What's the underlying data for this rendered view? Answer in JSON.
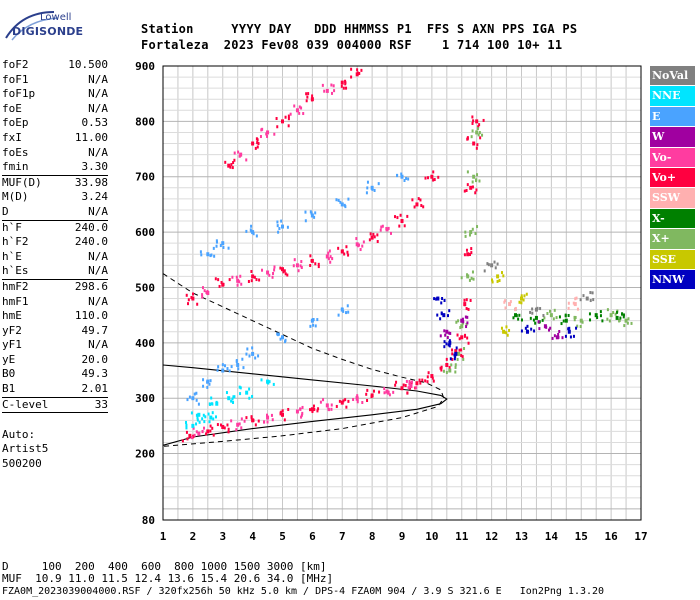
{
  "logo": {
    "line1": "Lowell",
    "line2": "DIGISONDE"
  },
  "header": {
    "line1": "Station     YYYY DAY   DDD HHMMSS P1  FFS S AXN PPS IGA PS",
    "line2": "Fortaleza  2023 Fev08 039 004000 RSF    1 714 100 10+ 11"
  },
  "params": {
    "group1": [
      {
        "k": "foF2",
        "v": "10.500"
      },
      {
        "k": "foF1",
        "v": "N/A"
      },
      {
        "k": "foF1p",
        "v": "N/A"
      },
      {
        "k": "foE",
        "v": "N/A"
      },
      {
        "k": "foEp",
        "v": "0.53"
      },
      {
        "k": "fxI",
        "v": "11.00"
      },
      {
        "k": "foEs",
        "v": "N/A"
      },
      {
        "k": "fmin",
        "v": "3.30"
      }
    ],
    "group2": [
      {
        "k": "MUF(D)",
        "v": "33.98"
      },
      {
        "k": "M(D)",
        "v": "3.24"
      },
      {
        "k": "D",
        "v": "N/A"
      }
    ],
    "group3": [
      {
        "k": "h`F",
        "v": "240.0"
      },
      {
        "k": "h`F2",
        "v": "240.0"
      },
      {
        "k": "h`E",
        "v": "N/A"
      },
      {
        "k": "h`Es",
        "v": "N/A"
      }
    ],
    "group4": [
      {
        "k": "hmF2",
        "v": "298.6"
      },
      {
        "k": "hmF1",
        "v": "N/A"
      },
      {
        "k": "hmE",
        "v": "110.0"
      },
      {
        "k": "yF2",
        "v": "49.7"
      },
      {
        "k": "yF1",
        "v": "N/A"
      },
      {
        "k": "yE",
        "v": "20.0"
      },
      {
        "k": "B0",
        "v": "49.3"
      },
      {
        "k": "B1",
        "v": "2.01"
      }
    ],
    "group5": [
      {
        "k": "C-level",
        "v": "33"
      }
    ],
    "auto": [
      "Auto:",
      "Artist5",
      "500200"
    ]
  },
  "legend": [
    {
      "label": "NoVal",
      "color": "#808080"
    },
    {
      "label": "NNE",
      "color": "#00e5ff"
    },
    {
      "label": "E",
      "color": "#4aa3ff"
    },
    {
      "label": "W",
      "color": "#a000a0"
    },
    {
      "label": "Vo-",
      "color": "#ff3ca0"
    },
    {
      "label": "Vo+",
      "color": "#ff0040"
    },
    {
      "label": "SSW",
      "color": "#ffb0b0"
    },
    {
      "label": "X-",
      "color": "#008000"
    },
    {
      "label": "X+",
      "color": "#80b860"
    },
    {
      "label": "SSE",
      "color": "#c8c800"
    },
    {
      "label": "NNW",
      "color": "#0000c0"
    }
  ],
  "footer": {
    "line1": "D     100  200  400  600  800 1000 1500 3000 [km]",
    "line2": "MUF  10.9 11.0 11.5 12.4 13.6 15.4 20.6 34.0 [MHz]",
    "line3": "FZA0M_2023039004000.RSF / 320fx256h 50 kHz 5.0 km / DPS-4 FZA0M 904 / 3.9 S 321.6 E   Ion2Png 1.3.20"
  },
  "chart_data": {
    "type": "scatter",
    "xlim": [
      1,
      17
    ],
    "ylim": [
      80,
      900
    ],
    "x_ticks": [
      1,
      2,
      3,
      4,
      5,
      6,
      7,
      8,
      9,
      10,
      11,
      12,
      13,
      14,
      15,
      16,
      17
    ],
    "y_ticks": [
      80,
      200,
      300,
      400,
      500,
      600,
      700,
      800,
      900
    ],
    "grid": true,
    "series": [
      {
        "name": "Vo+",
        "color": "#ff0040",
        "points": [
          [
            1.9,
            232
          ],
          [
            2.5,
            240
          ],
          [
            3.0,
            248
          ],
          [
            4.0,
            260
          ],
          [
            5.0,
            270
          ],
          [
            6.0,
            280
          ],
          [
            7.0,
            292
          ],
          [
            8.0,
            305
          ],
          [
            9.0,
            318
          ],
          [
            9.5,
            327
          ],
          [
            10.0,
            340
          ],
          [
            10.5,
            360
          ],
          [
            10.8,
            385
          ],
          [
            11.0,
            410
          ],
          [
            11.1,
            470
          ],
          [
            11.2,
            560
          ],
          [
            11.3,
            680
          ],
          [
            11.4,
            760
          ],
          [
            11.5,
            800
          ],
          [
            2.0,
            480
          ],
          [
            3.0,
            505
          ],
          [
            4.0,
            520
          ],
          [
            5.0,
            533
          ],
          [
            6.0,
            548
          ],
          [
            7.0,
            565
          ],
          [
            8.0,
            590
          ],
          [
            9.0,
            620
          ],
          [
            9.5,
            650
          ],
          [
            10.0,
            700
          ],
          [
            3.2,
            720
          ],
          [
            4.0,
            760
          ],
          [
            5.0,
            800
          ],
          [
            6.0,
            840
          ],
          [
            7.0,
            870
          ],
          [
            7.5,
            885
          ]
        ]
      },
      {
        "name": "Vo-",
        "color": "#ff3ca0",
        "points": [
          [
            2.2,
            236
          ],
          [
            3.5,
            252
          ],
          [
            4.5,
            265
          ],
          [
            5.5,
            276
          ],
          [
            6.5,
            287
          ],
          [
            7.5,
            299
          ],
          [
            8.5,
            312
          ],
          [
            9.3,
            322
          ],
          [
            2.5,
            490
          ],
          [
            3.5,
            512
          ],
          [
            4.5,
            527
          ],
          [
            5.5,
            540
          ],
          [
            6.5,
            556
          ],
          [
            7.5,
            578
          ],
          [
            8.5,
            605
          ],
          [
            3.6,
            740
          ],
          [
            4.5,
            780
          ],
          [
            5.5,
            820
          ],
          [
            6.5,
            855
          ]
        ]
      },
      {
        "name": "E",
        "color": "#4aa3ff",
        "points": [
          [
            2.0,
            300
          ],
          [
            2.5,
            330
          ],
          [
            3.0,
            350
          ],
          [
            3.5,
            360
          ],
          [
            4.0,
            380
          ],
          [
            5.0,
            410
          ],
          [
            6.0,
            440
          ],
          [
            7.0,
            460
          ],
          [
            2.5,
            560
          ],
          [
            3.0,
            580
          ],
          [
            4.0,
            600
          ],
          [
            5.0,
            610
          ],
          [
            6.0,
            630
          ],
          [
            7.0,
            650
          ],
          [
            8.0,
            680
          ],
          [
            9.0,
            700
          ]
        ]
      },
      {
        "name": "NNE",
        "color": "#00e5ff",
        "points": [
          [
            2.2,
            270
          ],
          [
            2.8,
            290
          ],
          [
            3.2,
            300
          ],
          [
            3.8,
            310
          ],
          [
            4.5,
            330
          ],
          [
            2.0,
            250
          ],
          [
            2.6,
            265
          ]
        ]
      },
      {
        "name": "X+",
        "color": "#80b860",
        "points": [
          [
            10.6,
            350
          ],
          [
            10.9,
            380
          ],
          [
            11.0,
            430
          ],
          [
            11.2,
            520
          ],
          [
            11.3,
            600
          ],
          [
            11.4,
            700
          ],
          [
            11.5,
            780
          ],
          [
            14.0,
            450
          ],
          [
            15.0,
            440
          ],
          [
            16.0,
            450
          ],
          [
            16.5,
            440
          ]
        ]
      },
      {
        "name": "X-",
        "color": "#008000",
        "points": [
          [
            12.8,
            450
          ],
          [
            13.5,
            445
          ],
          [
            14.5,
            440
          ],
          [
            15.5,
            450
          ],
          [
            16.2,
            445
          ]
        ]
      },
      {
        "name": "NNW",
        "color": "#0000c0",
        "points": [
          [
            10.2,
            480
          ],
          [
            10.4,
            450
          ],
          [
            10.6,
            400
          ],
          [
            10.8,
            380
          ],
          [
            13.2,
            420
          ],
          [
            14.6,
            420
          ]
        ]
      },
      {
        "name": "W",
        "color": "#a000a0",
        "points": [
          [
            10.5,
            420
          ],
          [
            11.0,
            440
          ],
          [
            13.8,
            430
          ],
          [
            14.2,
            410
          ]
        ]
      },
      {
        "name": "SSE",
        "color": "#c8c800",
        "points": [
          [
            12.2,
            520
          ],
          [
            12.4,
            420
          ],
          [
            13.0,
            480
          ]
        ]
      },
      {
        "name": "SSW",
        "color": "#ffb0b0",
        "points": [
          [
            12.6,
            470
          ],
          [
            14.8,
            470
          ]
        ]
      },
      {
        "name": "NoVal",
        "color": "#808080",
        "points": [
          [
            12.0,
            540
          ],
          [
            13.5,
            460
          ],
          [
            15.2,
            480
          ]
        ]
      }
    ],
    "profile_solid": [
      [
        1.0,
        215
      ],
      [
        2.0,
        230
      ],
      [
        4.0,
        245
      ],
      [
        6.0,
        258
      ],
      [
        8.0,
        270
      ],
      [
        9.5,
        280
      ],
      [
        10.3,
        290
      ],
      [
        10.5,
        298.6
      ],
      [
        10.3,
        305
      ],
      [
        9.5,
        313
      ],
      [
        8.0,
        322
      ],
      [
        6.0,
        333
      ],
      [
        4.0,
        344
      ],
      [
        2.0,
        355
      ],
      [
        1.0,
        360
      ]
    ],
    "profile_dashed": [
      [
        1.0,
        525
      ],
      [
        2.0,
        490
      ],
      [
        3.0,
        465
      ],
      [
        4.0,
        440
      ],
      [
        5.0,
        415
      ],
      [
        6.0,
        390
      ],
      [
        7.0,
        370
      ],
      [
        8.0,
        352
      ],
      [
        9.0,
        338
      ],
      [
        9.8,
        328
      ],
      [
        10.3,
        315
      ],
      [
        10.4,
        300
      ],
      [
        10.2,
        285
      ],
      [
        9.0,
        265
      ],
      [
        7.0,
        245
      ],
      [
        5.0,
        232
      ],
      [
        3.0,
        222
      ],
      [
        1.0,
        213
      ]
    ]
  }
}
